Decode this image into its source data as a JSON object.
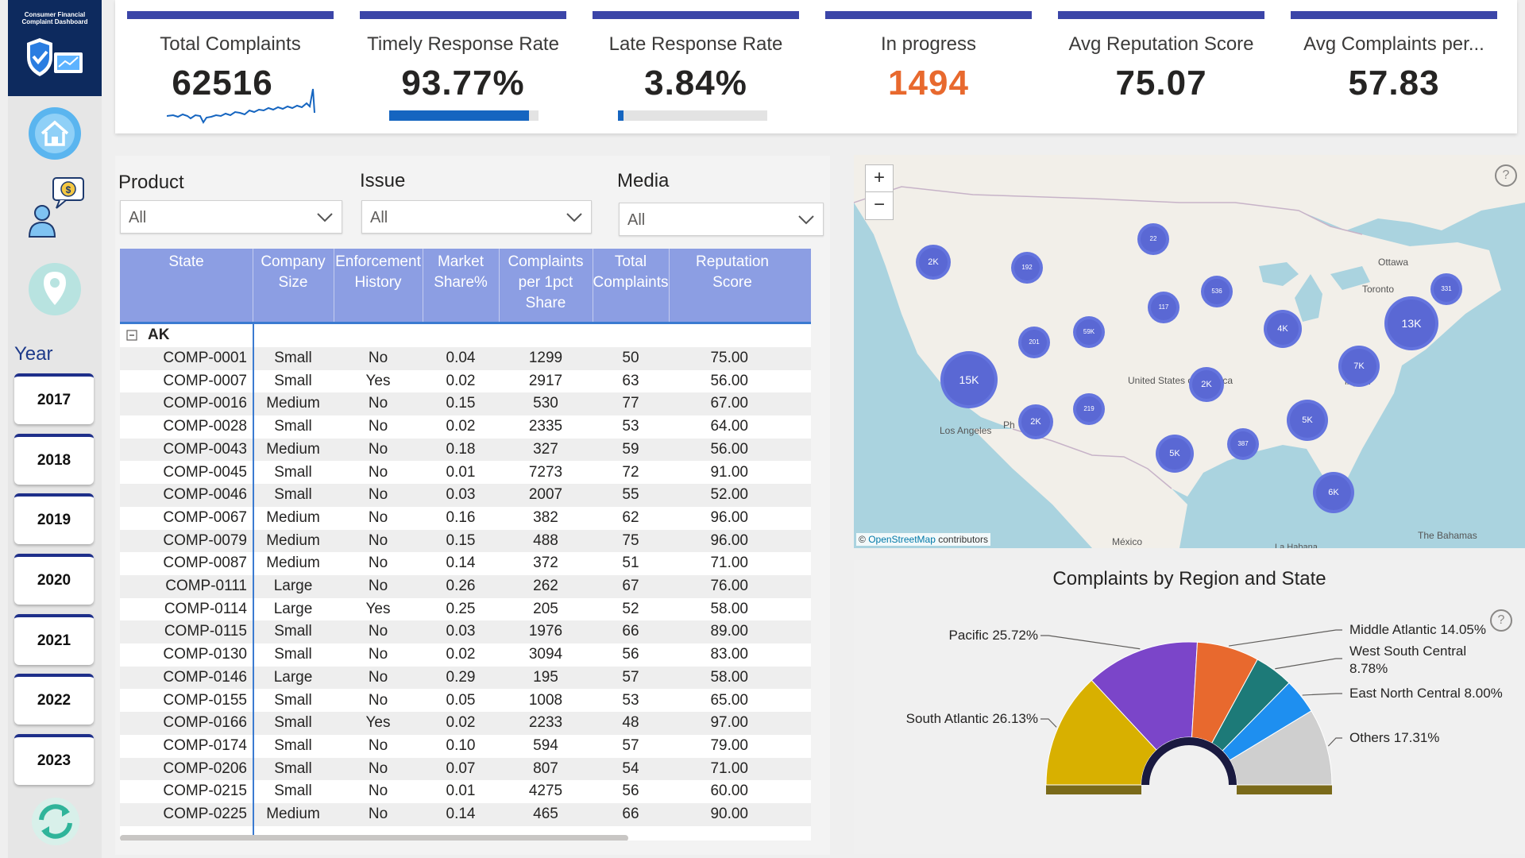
{
  "app": {
    "logo_text_line1": "Consumer Financial",
    "logo_text_line2": "Complaint Dashboard"
  },
  "sidebar": {
    "icons": [
      "home-icon",
      "customer-support-icon",
      "map-pin-icon",
      "refresh-icon"
    ],
    "year_title": "Year",
    "years": [
      "2017",
      "2018",
      "2019",
      "2020",
      "2021",
      "2022",
      "2023"
    ]
  },
  "kpis": [
    {
      "label": "Total Complaints",
      "value": "62516",
      "visual": "sparkline"
    },
    {
      "label": "Timely Response Rate",
      "value": "93.77%",
      "progress": 0.9377
    },
    {
      "label": "Late Response Rate",
      "value": "3.84%",
      "progress": 0.0384
    },
    {
      "label": "In progress",
      "value": "1494",
      "color": "#e8692e"
    },
    {
      "label": "Avg Reputation Score",
      "value": "75.07"
    },
    {
      "label": "Avg Complaints per...",
      "value": "57.83"
    }
  ],
  "filters": {
    "product": {
      "label": "Product",
      "value": "All"
    },
    "issue": {
      "label": "Issue",
      "value": "All"
    },
    "media": {
      "label": "Media",
      "value": "All"
    }
  },
  "table": {
    "headers": [
      [
        "State"
      ],
      [
        "Company",
        "Size"
      ],
      [
        "Enforcement",
        "History"
      ],
      [
        "Market",
        "Share%"
      ],
      [
        "Complaints",
        "per 1pct",
        "Share"
      ],
      [
        "Total",
        "Complaints"
      ],
      [
        "Reputation",
        "Score"
      ]
    ],
    "group": "AK",
    "rows": [
      [
        "COMP-0001",
        "Small",
        "No",
        "0.04",
        "1299",
        "50",
        "75.00"
      ],
      [
        "COMP-0007",
        "Small",
        "Yes",
        "0.02",
        "2917",
        "63",
        "56.00"
      ],
      [
        "COMP-0016",
        "Medium",
        "No",
        "0.15",
        "530",
        "77",
        "67.00"
      ],
      [
        "COMP-0028",
        "Small",
        "No",
        "0.02",
        "2335",
        "53",
        "64.00"
      ],
      [
        "COMP-0043",
        "Medium",
        "No",
        "0.18",
        "327",
        "59",
        "56.00"
      ],
      [
        "COMP-0045",
        "Small",
        "No",
        "0.01",
        "7273",
        "72",
        "91.00"
      ],
      [
        "COMP-0046",
        "Small",
        "No",
        "0.03",
        "2007",
        "55",
        "52.00"
      ],
      [
        "COMP-0067",
        "Medium",
        "No",
        "0.16",
        "382",
        "62",
        "96.00"
      ],
      [
        "COMP-0079",
        "Medium",
        "No",
        "0.15",
        "488",
        "75",
        "96.00"
      ],
      [
        "COMP-0087",
        "Medium",
        "No",
        "0.14",
        "372",
        "51",
        "71.00"
      ],
      [
        "COMP-0111",
        "Large",
        "No",
        "0.26",
        "262",
        "67",
        "76.00"
      ],
      [
        "COMP-0114",
        "Large",
        "Yes",
        "0.25",
        "205",
        "52",
        "58.00"
      ],
      [
        "COMP-0115",
        "Small",
        "No",
        "0.03",
        "1976",
        "66",
        "89.00"
      ],
      [
        "COMP-0130",
        "Small",
        "No",
        "0.02",
        "3094",
        "56",
        "83.00"
      ],
      [
        "COMP-0146",
        "Large",
        "No",
        "0.29",
        "195",
        "57",
        "58.00"
      ],
      [
        "COMP-0155",
        "Small",
        "No",
        "0.05",
        "1008",
        "53",
        "65.00"
      ],
      [
        "COMP-0166",
        "Small",
        "Yes",
        "0.02",
        "2233",
        "48",
        "97.00"
      ],
      [
        "COMP-0174",
        "Small",
        "No",
        "0.10",
        "594",
        "57",
        "79.00"
      ],
      [
        "COMP-0206",
        "Small",
        "No",
        "0.07",
        "807",
        "54",
        "71.00"
      ],
      [
        "COMP-0215",
        "Small",
        "No",
        "0.01",
        "4275",
        "56",
        "60.00"
      ],
      [
        "COMP-0225",
        "Medium",
        "No",
        "0.14",
        "465",
        "66",
        "90.00"
      ]
    ]
  },
  "map": {
    "zoom_in": "+",
    "zoom_out": "−",
    "help": "?",
    "attribution_link": "OpenStreetMap",
    "attribution_rest": "contributors",
    "attribution_symbol": "©",
    "place_labels": [
      "Ottawa",
      "Toronto",
      "United States of America",
      "Los Angeles",
      "Ph",
      "ington",
      "México",
      "La Habana",
      "The Bahamas"
    ],
    "clusters": [
      "2K",
      "192",
      "22",
      "536",
      "117",
      "59K",
      "201",
      "15K",
      "2K",
      "219",
      "2K",
      "5K",
      "387",
      "4K",
      "13K",
      "331",
      "7K",
      "5K",
      "6K"
    ]
  },
  "region_chart": {
    "title": "Complaints by Region and State",
    "help": "?"
  },
  "chart_data": {
    "type": "pie",
    "subtype": "half-donut",
    "title": "Complaints by Region and State",
    "slices": [
      {
        "label": "South Atlantic",
        "value": 26.13,
        "display": "South Atlantic 26.13%",
        "color": "#d8b000"
      },
      {
        "label": "Pacific",
        "value": 25.72,
        "display": "Pacific 25.72%",
        "color": "#7b45c9"
      },
      {
        "label": "Middle Atlantic",
        "value": 14.05,
        "display": "Middle Atlantic 14.05%",
        "color": "#e8692e"
      },
      {
        "label": "West South Central",
        "value": 8.78,
        "display": "West South Central 8.78%",
        "color": "#1d7a78"
      },
      {
        "label": "East North Central",
        "value": 8.0,
        "display": "East North Central 8.00%",
        "color": "#1e8ff0"
      },
      {
        "label": "Others",
        "value": 17.31,
        "display": "Others 17.31%",
        "color": "#cfcfcf"
      }
    ]
  }
}
